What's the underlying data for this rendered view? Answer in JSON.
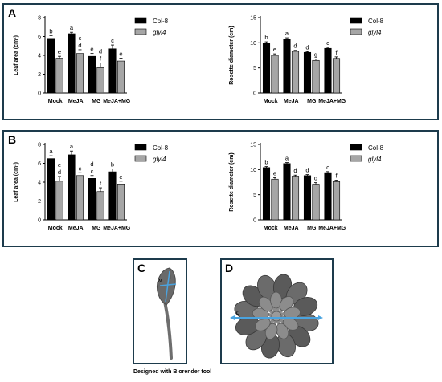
{
  "panels": {
    "A": "A",
    "B": "B",
    "C": "C",
    "D": "D"
  },
  "caption": "Designed with Biorender tool",
  "illustration_labels": {
    "leaf_l": "l",
    "leaf_w": "w",
    "rosette_d": "d"
  },
  "colors": {
    "frame": "#1d3b4c",
    "col8": "#000000",
    "glyl4": "#a6a6a6",
    "arrow": "#4aa3df",
    "leaf_dark": "#5a5a5a",
    "leaf_light": "#8c8c8c"
  },
  "chart_data": [
    {
      "panel": "A",
      "type": "bar",
      "ylabel": "Leaf area (cm²)",
      "categories": [
        "Mock",
        "MeJA",
        "MG",
        "MeJA+MG"
      ],
      "ylim": [
        0,
        8
      ],
      "yticks": [
        0,
        2,
        4,
        6,
        8
      ],
      "series": [
        {
          "name": "Col-8",
          "values": [
            5.8,
            6.3,
            3.9,
            4.7
          ],
          "errors": [
            0.3,
            0.15,
            0.3,
            0.4
          ],
          "letters": [
            "b",
            "a",
            "e",
            "c"
          ]
        },
        {
          "name": "glyl4",
          "values": [
            3.7,
            4.2,
            2.7,
            3.4
          ],
          "errors": [
            0.2,
            0.4,
            0.5,
            0.3
          ],
          "letters": [
            "e",
            "c\nd",
            "d\nf",
            "e"
          ]
        }
      ]
    },
    {
      "panel": "A",
      "type": "bar",
      "ylabel": "Rosette diameter (cm)",
      "categories": [
        "Mock",
        "MeJA",
        "MG",
        "MeJA+MG"
      ],
      "ylim": [
        0,
        15
      ],
      "yticks": [
        0,
        5,
        10,
        15
      ],
      "series": [
        {
          "name": "Col-8",
          "values": [
            10.0,
            10.8,
            8.1,
            8.9
          ],
          "errors": [
            0.2,
            0.2,
            0.15,
            0.2
          ],
          "letters": [
            "b",
            "a",
            "d",
            "c"
          ]
        },
        {
          "name": "glyl4",
          "values": [
            7.5,
            8.3,
            6.5,
            6.9
          ],
          "errors": [
            0.3,
            0.2,
            0.3,
            0.3
          ],
          "letters": [
            "e",
            "d",
            "g",
            "f"
          ]
        }
      ]
    },
    {
      "panel": "B",
      "type": "bar",
      "ylabel": "Leaf area (cm²)",
      "categories": [
        "Mock",
        "MeJA",
        "MG",
        "MeJA+MG"
      ],
      "ylim": [
        0,
        8
      ],
      "yticks": [
        0,
        2,
        4,
        6,
        8
      ],
      "series": [
        {
          "name": "Col-8",
          "values": [
            6.5,
            6.9,
            4.4,
            5.1
          ],
          "errors": [
            0.3,
            0.4,
            0.3,
            0.3
          ],
          "letters": [
            "a",
            "a",
            "d\nc",
            "b"
          ]
        },
        {
          "name": "glyl4",
          "values": [
            4.1,
            4.7,
            3.0,
            3.8
          ],
          "errors": [
            0.5,
            0.3,
            0.4,
            0.3
          ],
          "letters": [
            "e\nd",
            "c",
            "f",
            "e"
          ]
        }
      ]
    },
    {
      "panel": "B",
      "type": "bar",
      "ylabel": "Rosette diameter (cm)",
      "categories": [
        "Mock",
        "MeJA",
        "MG",
        "MeJA+MG"
      ],
      "ylim": [
        0,
        15
      ],
      "yticks": [
        0,
        5,
        10,
        15
      ],
      "series": [
        {
          "name": "Col-8",
          "values": [
            10.4,
            11.2,
            8.8,
            9.4
          ],
          "errors": [
            0.2,
            0.2,
            0.2,
            0.2
          ],
          "letters": [
            "b",
            "a",
            "d",
            "c"
          ]
        },
        {
          "name": "glyl4",
          "values": [
            8.1,
            8.7,
            7.1,
            7.6
          ],
          "errors": [
            0.3,
            0.2,
            0.3,
            0.3
          ],
          "letters": [
            "e",
            "d",
            "g",
            "f"
          ]
        }
      ]
    }
  ]
}
